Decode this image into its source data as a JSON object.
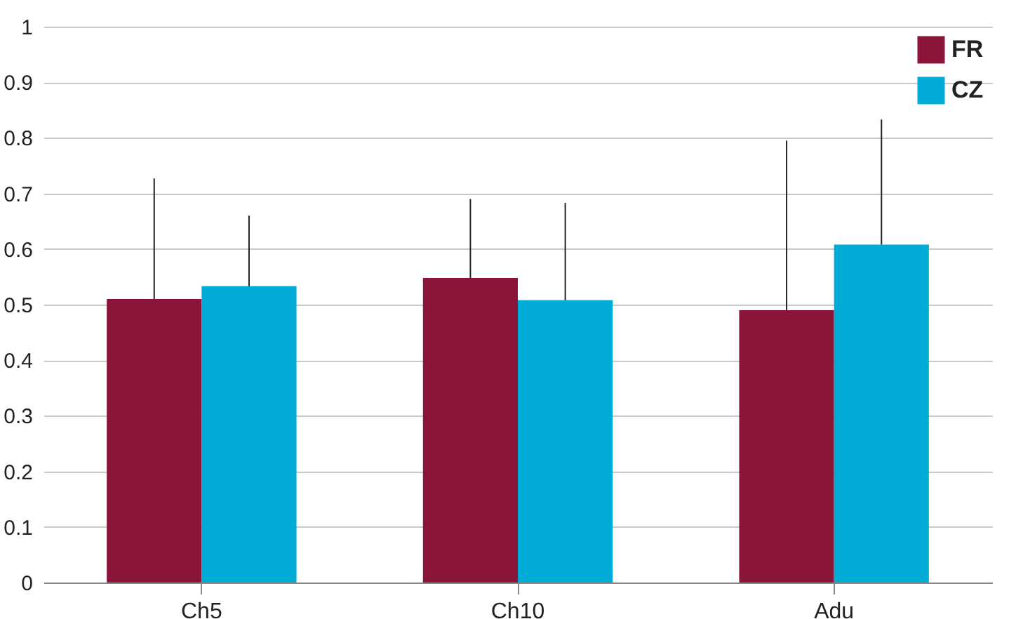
{
  "chart_data": {
    "type": "bar",
    "categories": [
      "Ch5",
      "Ch10",
      "Adu"
    ],
    "series": [
      {
        "name": "FR",
        "color": "#8b1538",
        "values": [
          0.51,
          0.548,
          0.49
        ],
        "errors": [
          [
            0.51,
            0.727
          ],
          [
            0.548,
            0.69
          ],
          [
            0.49,
            0.795
          ]
        ]
      },
      {
        "name": "CZ",
        "color": "#00acd6",
        "values": [
          0.533,
          0.508,
          0.608
        ],
        "errors": [
          [
            0.533,
            0.66
          ],
          [
            0.508,
            0.683
          ],
          [
            0.608,
            0.833
          ]
        ]
      }
    ],
    "ylim": [
      0,
      1
    ],
    "yticks": [
      0,
      0.1,
      0.2,
      0.3,
      0.4,
      0.5,
      0.6,
      0.7,
      0.8,
      0.9,
      1
    ],
    "grid": "y",
    "legend": "top right"
  }
}
